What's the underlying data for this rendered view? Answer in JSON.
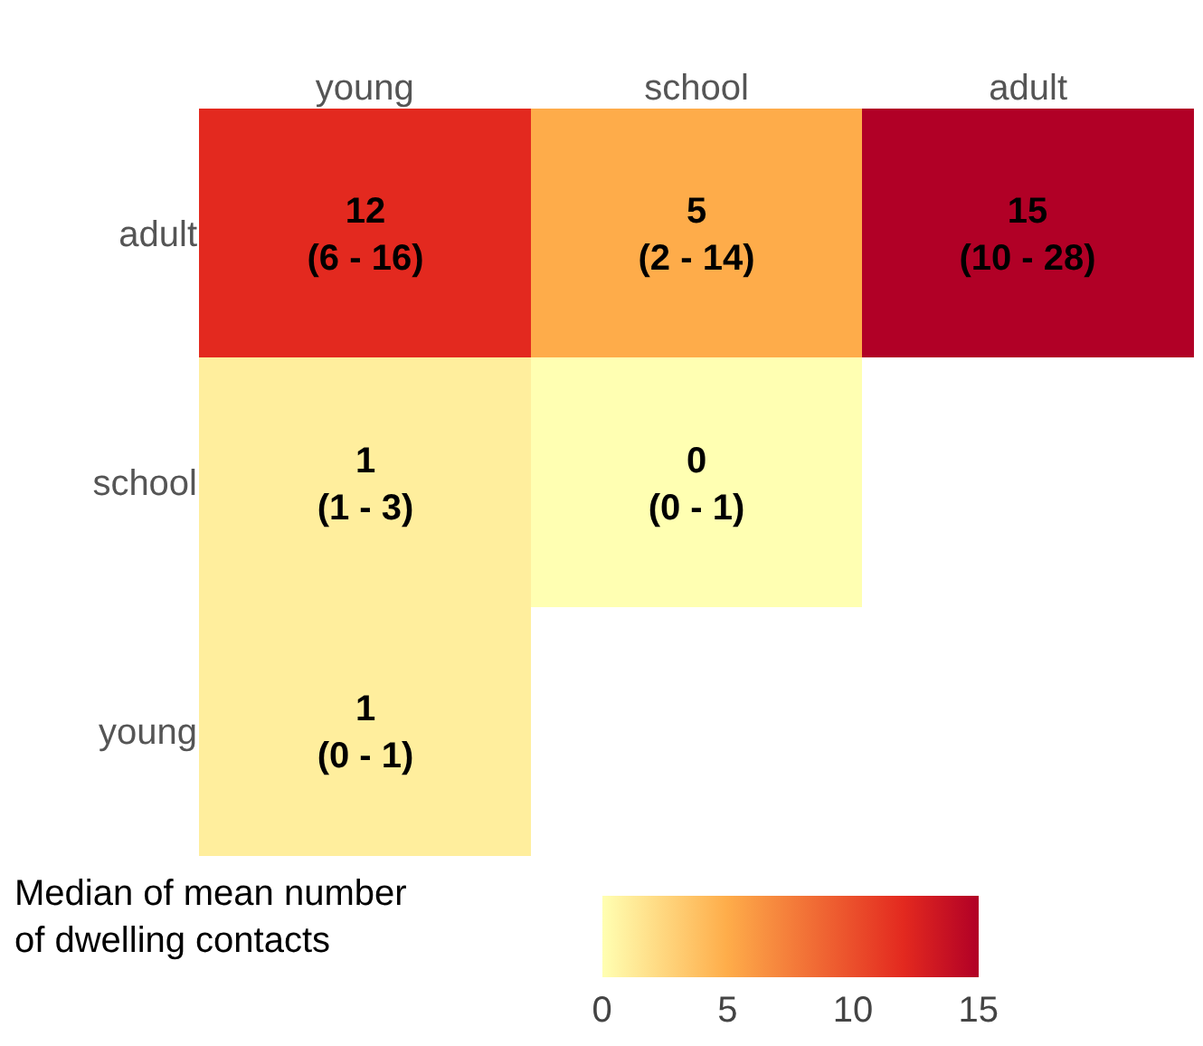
{
  "chart_data": {
    "type": "heatmap",
    "categories": [
      "young",
      "school",
      "adult"
    ],
    "y_categories": [
      "adult",
      "school",
      "young"
    ],
    "cells": [
      [
        12,
        5,
        15
      ],
      [
        1,
        0,
        null
      ],
      [
        1,
        null,
        null
      ]
    ],
    "cell_labels": [
      [
        "12\n(6 - 16)",
        "5\n(2 - 14)",
        "15\n(10 - 28)"
      ],
      [
        "1\n(1 - 3)",
        "0\n(0 - 1)",
        null
      ],
      [
        "1\n(0 - 1)",
        null,
        null
      ]
    ],
    "clabel": "Median of mean number\nof dwelling contacts",
    "clim": [
      0,
      15
    ],
    "cticks": [
      0,
      5,
      10,
      15
    ]
  }
}
